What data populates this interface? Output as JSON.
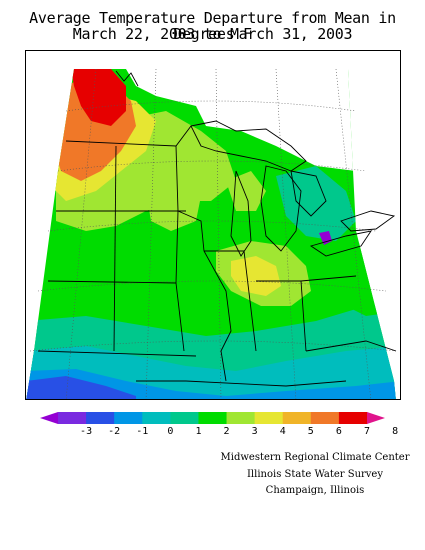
{
  "title": {
    "line1": "Average Temperature Departure from Mean in Degrees F",
    "line2": "March 22, 2003 to March 31, 2003"
  },
  "legend": {
    "ticks": [
      "-3",
      "-2",
      "-1",
      "0",
      "1",
      "2",
      "3",
      "4",
      "5",
      "6",
      "7",
      "8"
    ],
    "colors": [
      "#9400d3",
      "#7a2ae0",
      "#2850e6",
      "#0096e6",
      "#00bdbd",
      "#00c88c",
      "#00dc00",
      "#a0e632",
      "#e6e632",
      "#f0b428",
      "#f07828",
      "#e60000",
      "#e0148c"
    ]
  },
  "credits": {
    "line1": "Midwestern Regional Climate Center",
    "line2": "Illinois State Water Survey",
    "line3": "Champaign, Illinois"
  }
}
